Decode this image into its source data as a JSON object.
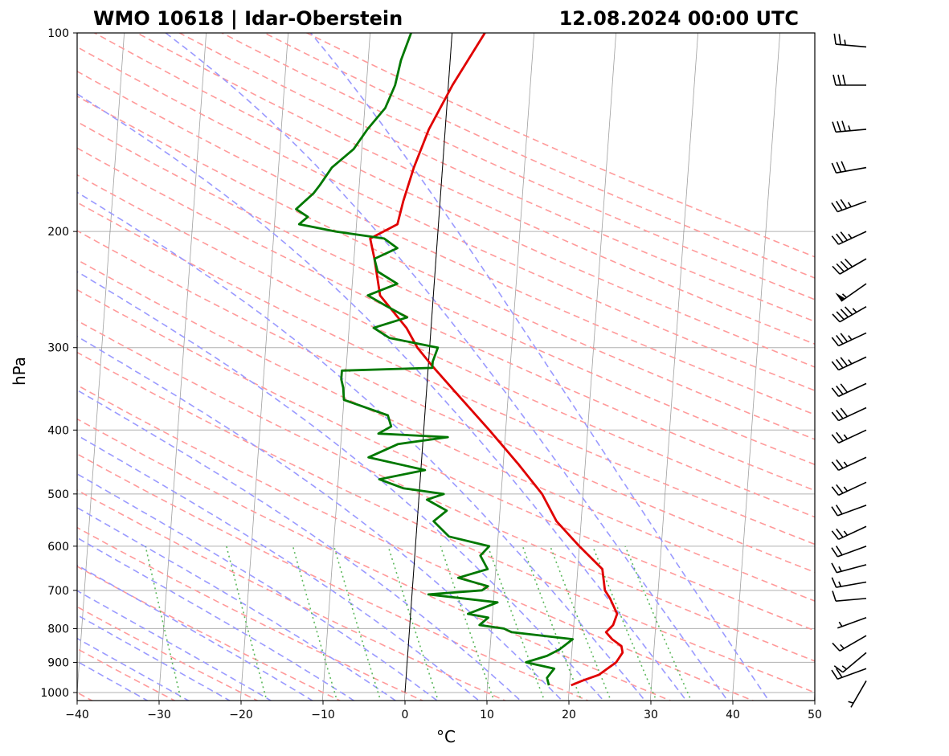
{
  "chart_data": {
    "type": "line",
    "title_left": "WMO 10618 | Idar-Oberstein",
    "title_right": "12.08.2024 00:00 UTC",
    "xlabel": "°C",
    "ylabel": "hPa",
    "xlim": [
      -40,
      50
    ],
    "ylim": [
      1000,
      100
    ],
    "y_scale": "log",
    "grid": true,
    "x_ticks": [
      "−40",
      "−30",
      "−20",
      "−10",
      "0",
      "10",
      "20",
      "30",
      "40",
      "50"
    ],
    "x_tick_values": [
      -40,
      -30,
      -20,
      -10,
      0,
      10,
      20,
      30,
      40,
      50
    ],
    "y_ticks": [
      "100",
      "200",
      "300",
      "400",
      "500",
      "600",
      "700",
      "800",
      "900",
      "1000"
    ],
    "y_tick_values": [
      100,
      200,
      300,
      400,
      500,
      600,
      700,
      800,
      900,
      1000
    ],
    "colors": {
      "temperature": "#e00000",
      "dewpoint": "#007800",
      "dry_adiabat": "#ff9a9a",
      "moist_adiabat": "#9a9aff",
      "mixing_ratio": "#5cb85c",
      "isotherm": "#888888",
      "grid": "#b0b0b0"
    },
    "series": [
      {
        "color": "#e00000",
        "pressure": [
          975,
          960,
          940,
          900,
          870,
          850,
          830,
          810,
          790,
          760,
          720,
          700,
          650,
          600,
          550,
          500,
          450,
          400,
          350,
          320,
          300,
          280,
          250,
          220,
          205,
          195,
          180,
          160,
          140,
          120,
          100
        ],
        "temperature": [
          20.2,
          21.5,
          23.5,
          25.5,
          26.2,
          26.0,
          24.8,
          24.0,
          24.8,
          25.2,
          24.2,
          23.5,
          23.0,
          20.0,
          17.0,
          15.0,
          11.8,
          8.0,
          3.5,
          0.5,
          -1.5,
          -3.0,
          -6.5,
          -7.5,
          -8.2,
          -5.0,
          -4.5,
          -3.5,
          -2.0,
          0.5,
          4.0
        ]
      },
      {
        "color": "#007800",
        "pressure": [
          975,
          950,
          920,
          900,
          880,
          860,
          830,
          810,
          800,
          790,
          770,
          760,
          730,
          710,
          700,
          690,
          670,
          650,
          620,
          600,
          580,
          550,
          530,
          510,
          500,
          490,
          475,
          460,
          440,
          420,
          410,
          405,
          395,
          380,
          360,
          345,
          335,
          325,
          322,
          315,
          300,
          290,
          280,
          270,
          260,
          250,
          240,
          230,
          220,
          212,
          205,
          200,
          195,
          190,
          185,
          175,
          170,
          160,
          150,
          140,
          130,
          120,
          110,
          100
        ],
        "temperature": [
          17.5,
          17.2,
          18.0,
          14.5,
          17.0,
          18.5,
          20.0,
          12.5,
          11.5,
          8.5,
          9.5,
          7.0,
          10.5,
          2.0,
          8.5,
          9.2,
          5.5,
          9.0,
          8.0,
          9.0,
          4.0,
          2.0,
          3.5,
          1.0,
          3.0,
          -2.0,
          -5.0,
          0.5,
          -6.5,
          -3.0,
          3.0,
          -5.5,
          -4.0,
          -4.5,
          -10.0,
          -10.2,
          -10.5,
          -10.5,
          0.5,
          0.5,
          1.0,
          -5.0,
          -7.0,
          -3.0,
          -5.5,
          -8.0,
          -4.5,
          -7.0,
          -7.5,
          -4.8,
          -6.5,
          -12.5,
          -17.0,
          -16.0,
          -17.5,
          -15.5,
          -14.8,
          -13.5,
          -11.0,
          -9.5,
          -7.5,
          -6.5,
          -6.0,
          -5.0
        ]
      }
    ],
    "wind_barbs": {
      "pressure": [
        960,
        920,
        870,
        820,
        770,
        720,
        680,
        640,
        600,
        560,
        520,
        480,
        440,
        400,
        370,
        340,
        310,
        285,
        260,
        240,
        220,
        200,
        180,
        160,
        140,
        120,
        105
      ],
      "speed_kt": [
        5,
        20,
        15,
        15,
        5,
        10,
        15,
        15,
        20,
        25,
        20,
        25,
        25,
        25,
        30,
        30,
        35,
        35,
        45,
        55,
        40,
        35,
        35,
        30,
        35,
        30,
        25
      ],
      "direction_deg": [
        210,
        250,
        230,
        240,
        250,
        265,
        260,
        255,
        250,
        245,
        250,
        245,
        245,
        245,
        245,
        245,
        245,
        245,
        240,
        235,
        240,
        245,
        250,
        260,
        265,
        270,
        275
      ]
    }
  }
}
